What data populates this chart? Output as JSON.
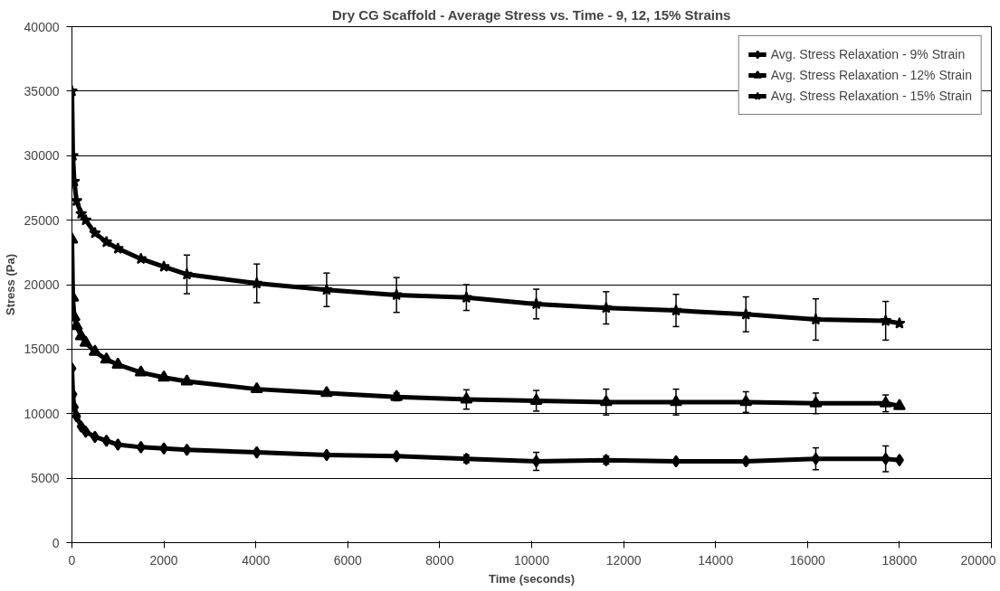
{
  "chart_data": {
    "type": "line",
    "title": "Dry CG Scaffold - Average Stress vs. Time - 9, 12, 15% Strains",
    "xlabel": "Time (seconds)",
    "ylabel": "Stress (Pa)",
    "x": [
      0,
      20,
      50,
      100,
      200,
      300,
      500,
      750,
      1000,
      1500,
      2000,
      2500,
      4020,
      5540,
      7060,
      8580,
      10100,
      11620,
      13140,
      14660,
      16180,
      17700,
      18000
    ],
    "series": [
      {
        "name": "Avg. Stress Relaxation - 9% Strain",
        "color": "#000000",
        "marker": "diamond",
        "values": [
          13500,
          11500,
          10500,
          9800,
          9000,
          8600,
          8200,
          7900,
          7600,
          7400,
          7300,
          7200,
          7000,
          6800,
          6700,
          6500,
          6300,
          6400,
          6300,
          6300,
          6500,
          6500,
          6400
        ],
        "errors": [
          null,
          null,
          null,
          null,
          null,
          null,
          null,
          null,
          null,
          null,
          null,
          null,
          null,
          null,
          null,
          300,
          700,
          300,
          null,
          null,
          850,
          1000,
          null
        ]
      },
      {
        "name": "Avg. Stress Relaxation - 12% Strain",
        "color": "#000000",
        "marker": "triangle",
        "values": [
          23500,
          19000,
          17500,
          16800,
          16000,
          15500,
          14800,
          14200,
          13800,
          13200,
          12800,
          12500,
          11900,
          11600,
          11300,
          11100,
          11000,
          10900,
          10900,
          10900,
          10800,
          10800,
          10600
        ],
        "errors": [
          null,
          null,
          null,
          null,
          null,
          null,
          null,
          null,
          null,
          null,
          null,
          null,
          null,
          null,
          300,
          750,
          800,
          1000,
          1000,
          800,
          800,
          650,
          null
        ]
      },
      {
        "name": "Avg. Stress Relaxation - 15% Strain",
        "color": "#000000",
        "marker": "star",
        "values": [
          35000,
          30000,
          28000,
          26500,
          25500,
          25000,
          24000,
          23300,
          22800,
          22000,
          21400,
          20800,
          20100,
          19600,
          19200,
          19000,
          18500,
          18200,
          18000,
          17700,
          17300,
          17200,
          17000
        ],
        "errors": [
          null,
          null,
          null,
          null,
          null,
          null,
          null,
          null,
          null,
          null,
          null,
          1500,
          1500,
          1300,
          1350,
          1000,
          1150,
          1250,
          1250,
          1350,
          1600,
          1500,
          null
        ]
      }
    ],
    "xlim": [
      0,
      20000
    ],
    "xticks": [
      0,
      2000,
      4000,
      6000,
      8000,
      10000,
      12000,
      14000,
      16000,
      18000,
      20000
    ],
    "ylim": [
      0,
      40000
    ],
    "yticks": [
      0,
      5000,
      10000,
      15000,
      20000,
      25000,
      30000,
      35000,
      40000
    ],
    "grid": "y",
    "legend": "top right",
    "line_style": "solid"
  }
}
